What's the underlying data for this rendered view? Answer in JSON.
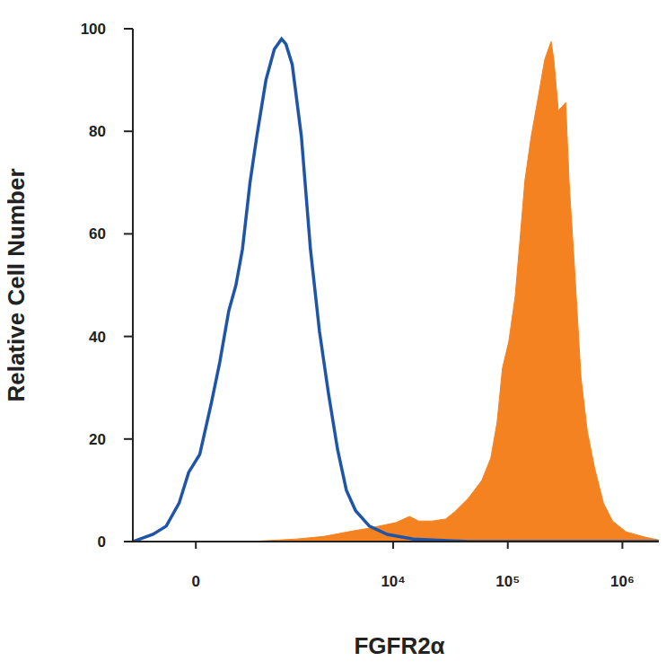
{
  "chart_data": {
    "type": "area",
    "x_label": "FGFR2α",
    "y_label": "Relative Cell Number",
    "xlim": [
      -620,
      2400000
    ],
    "ylim": [
      0,
      100
    ],
    "xticks": [
      0,
      {
        "value": 10000,
        "label": "10⁴"
      },
      {
        "value": 100000,
        "label": "10⁵"
      },
      {
        "value": 1000000,
        "label": "10⁶"
      }
    ],
    "yticks": [
      0,
      20,
      40,
      60,
      80,
      100
    ],
    "grid": false,
    "series": [
      {
        "type": "area",
        "color": "#f58220",
        "x": [
          -620,
          500,
          795,
          1420,
          2470,
          4270,
          6150,
          10600,
          13900,
          16700,
          21900,
          28700,
          34400,
          45100,
          59300,
          71100,
          80700,
          89800,
          102000,
          116000,
          129000,
          141000,
          160000,
          182000,
          210000,
          239000,
          252000,
          276000,
          320000,
          343000,
          383000,
          435000,
          494000,
          570000,
          683000,
          820000,
          1075000,
          1546000,
          2400000
        ],
        "values": [
          0,
          0,
          0.2,
          0.5,
          1,
          2,
          2.6,
          3.7,
          4.9,
          4,
          4,
          4.4,
          5.8,
          8.4,
          11.9,
          16.3,
          23.3,
          33.8,
          39,
          47.8,
          60,
          70.4,
          79,
          86,
          94,
          97.5,
          94,
          84,
          85.6,
          70,
          53,
          32,
          21.5,
          14.5,
          7.5,
          4,
          1.9,
          0.9,
          0
        ]
      },
      {
        "type": "line",
        "color": "#1f55a8",
        "x": [
          -620,
          -370,
          -240,
          -130,
          -55,
          30,
          120,
          190,
          270,
          340,
          410,
          500,
          590,
          730,
          880,
          1030,
          1130,
          1290,
          1560,
          1880,
          2260,
          2710,
          3260,
          3900,
          4700,
          6200,
          8900,
          15000,
          45000,
          2400000
        ],
        "values": [
          0,
          1.4,
          3,
          7.5,
          13.5,
          17,
          27,
          35,
          45,
          50,
          57,
          70,
          79,
          90,
          96,
          98,
          97,
          93,
          79,
          57,
          41,
          29,
          18,
          10,
          6,
          3,
          1.4,
          0.5,
          0,
          0
        ]
      }
    ]
  }
}
